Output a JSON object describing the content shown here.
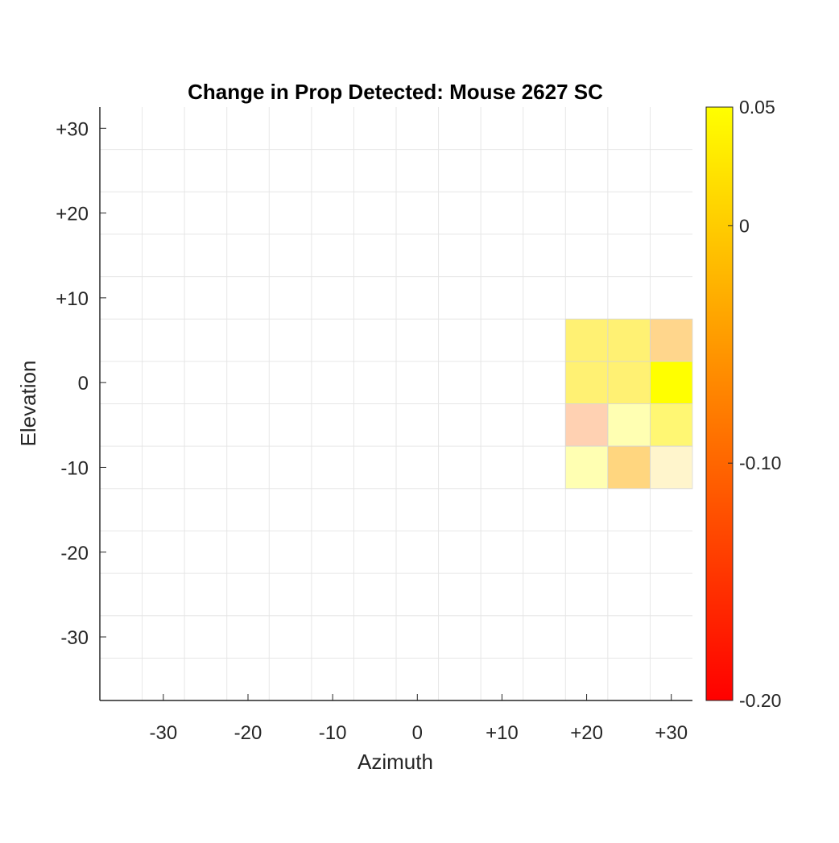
{
  "chart_data": {
    "type": "heatmap",
    "title": "Change in Prop Detected: Mouse 2627 SC",
    "xlabel": "Azimuth",
    "ylabel": "Elevation",
    "xlim": [
      -37.5,
      32.5
    ],
    "ylim": [
      -37.5,
      32.5
    ],
    "cell_size": 5,
    "grid": true,
    "x_ticks": [
      {
        "value": -30,
        "label": "-30"
      },
      {
        "value": -20,
        "label": "-20"
      },
      {
        "value": -10,
        "label": "-10"
      },
      {
        "value": 0,
        "label": "0"
      },
      {
        "value": 10,
        "label": "+10"
      },
      {
        "value": 20,
        "label": "+20"
      },
      {
        "value": 30,
        "label": "+30"
      }
    ],
    "y_ticks": [
      {
        "value": 30,
        "label": "+30"
      },
      {
        "value": 20,
        "label": "+20"
      },
      {
        "value": 10,
        "label": "+10"
      },
      {
        "value": 0,
        "label": "0"
      },
      {
        "value": -10,
        "label": "-10"
      },
      {
        "value": -20,
        "label": "-20"
      },
      {
        "value": -30,
        "label": "-30"
      }
    ],
    "colorbar": {
      "min": -0.2,
      "max": 0.05,
      "colormap": "autumn",
      "ticks": [
        {
          "value": 0.05,
          "label": "0.05"
        },
        {
          "value": 0,
          "label": "0"
        },
        {
          "value": -0.1,
          "label": "-0.10"
        },
        {
          "value": -0.2,
          "label": "-0.20"
        }
      ]
    },
    "cells": [
      {
        "x": 20,
        "y": 5,
        "value": 0.025,
        "alpha": 0.55
      },
      {
        "x": 25,
        "y": 5,
        "value": 0.025,
        "alpha": 0.55
      },
      {
        "x": 30,
        "y": 5,
        "value": -0.04,
        "alpha": 0.45
      },
      {
        "x": 20,
        "y": 0,
        "value": 0.025,
        "alpha": 0.55
      },
      {
        "x": 25,
        "y": 0,
        "value": 0.025,
        "alpha": 0.55
      },
      {
        "x": 30,
        "y": 0,
        "value": 0.05,
        "alpha": 1.0
      },
      {
        "x": 20,
        "y": -5,
        "value": -0.1,
        "alpha": 0.3
      },
      {
        "x": 20,
        "y": -10,
        "value": 0.05,
        "alpha": 0.3
      },
      {
        "x": 25,
        "y": -5,
        "value": 0.05,
        "alpha": 0.3
      },
      {
        "x": 30,
        "y": -5,
        "value": 0.035,
        "alpha": 0.55
      },
      {
        "x": 25,
        "y": -10,
        "value": -0.03,
        "alpha": 0.5
      },
      {
        "x": 30,
        "y": -10,
        "value": 0.0,
        "alpha": 0.2
      }
    ]
  }
}
